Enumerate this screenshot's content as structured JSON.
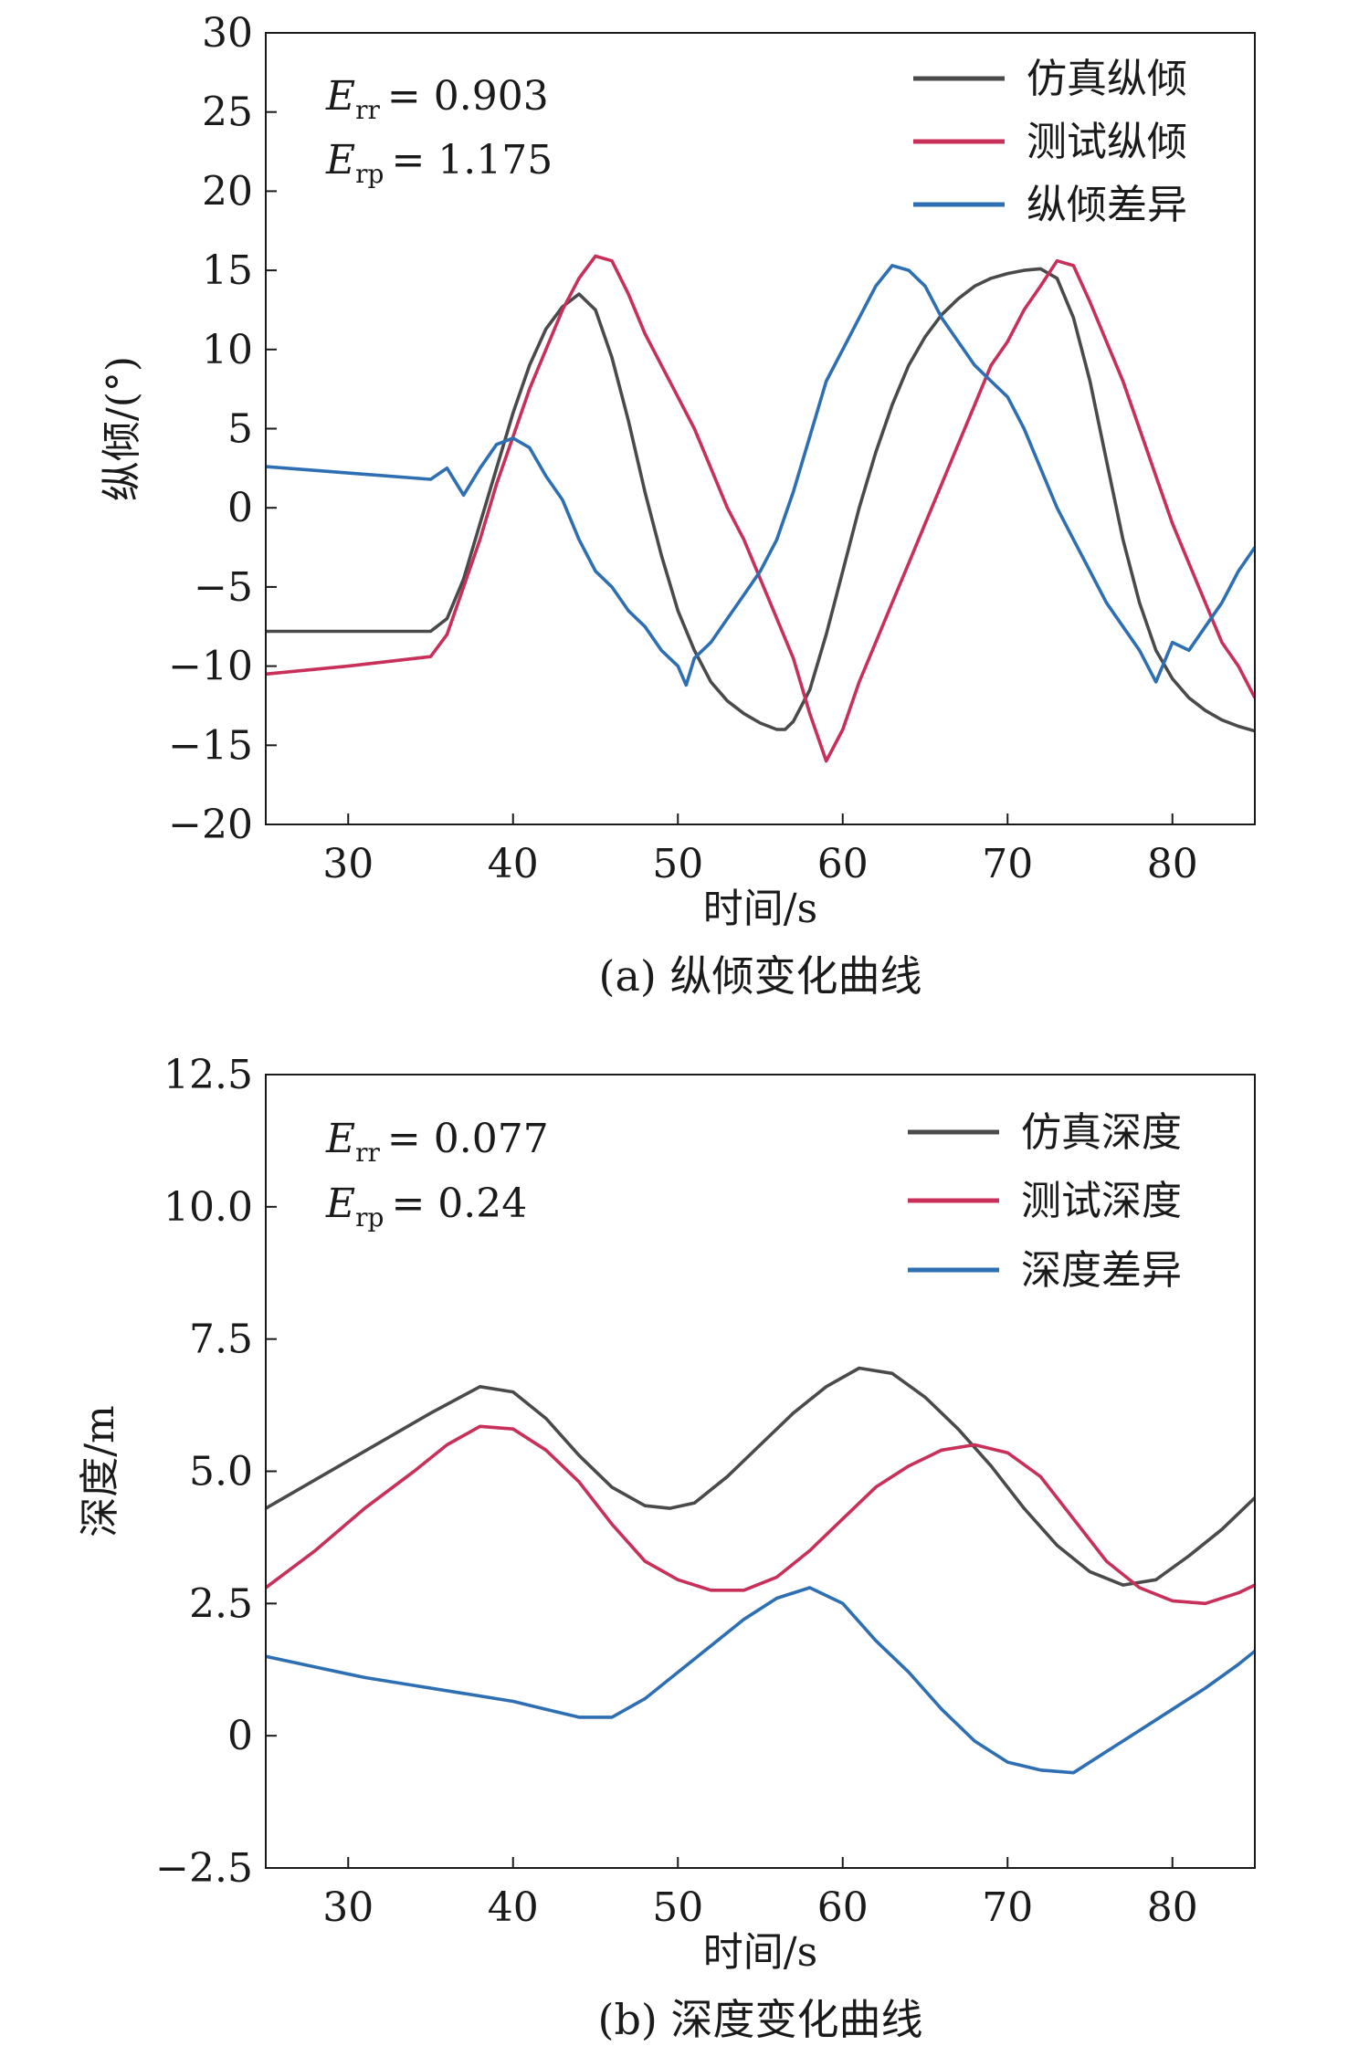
{
  "chart_data": [
    {
      "type": "line",
      "caption": "(a) 纵倾变化曲线",
      "xlabel": "时间/s",
      "ylabel": "纵倾/(°)",
      "xlim": [
        25,
        85
      ],
      "ylim": [
        -20,
        30
      ],
      "xticks": [
        30,
        40,
        50,
        60,
        70,
        80
      ],
      "yticks": [
        30,
        25,
        20,
        15,
        10,
        5,
        0,
        -5,
        -10,
        -15,
        -20
      ],
      "ytick_labels": [
        "30",
        "25",
        "20",
        "15",
        "10",
        "5",
        "0",
        "−5",
        "−10",
        "−15",
        "−20"
      ],
      "grid": false,
      "legend_position": "top-right",
      "annotations": [
        {
          "symbol": "E",
          "subscript": "rr",
          "value": "= 0.903"
        },
        {
          "symbol": "E",
          "subscript": "rp",
          "value": "= 1.175"
        }
      ],
      "series": [
        {
          "name": "仿真纵倾",
          "color": "#4a4a4a",
          "points": [
            [
              25,
              -7.8
            ],
            [
              35,
              -7.8
            ],
            [
              36,
              -7
            ],
            [
              37,
              -4.5
            ],
            [
              38,
              -1
            ],
            [
              39,
              2.5
            ],
            [
              40,
              6
            ],
            [
              41,
              9
            ],
            [
              42,
              11.3
            ],
            [
              43,
              12.7
            ],
            [
              44,
              13.5
            ],
            [
              45,
              12.5
            ],
            [
              46,
              9.5
            ],
            [
              47,
              5.5
            ],
            [
              48,
              1
            ],
            [
              49,
              -3
            ],
            [
              50,
              -6.5
            ],
            [
              51,
              -9
            ],
            [
              52,
              -11
            ],
            [
              53,
              -12.2
            ],
            [
              54,
              -13
            ],
            [
              55,
              -13.6
            ],
            [
              56,
              -14
            ],
            [
              56.5,
              -14
            ],
            [
              57,
              -13.5
            ],
            [
              58,
              -11.5
            ],
            [
              59,
              -8
            ],
            [
              60,
              -4
            ],
            [
              61,
              0
            ],
            [
              62,
              3.5
            ],
            [
              63,
              6.5
            ],
            [
              64,
              9
            ],
            [
              65,
              10.8
            ],
            [
              66,
              12.2
            ],
            [
              67,
              13.2
            ],
            [
              68,
              14
            ],
            [
              69,
              14.5
            ],
            [
              70,
              14.8
            ],
            [
              71,
              15
            ],
            [
              72,
              15.1
            ],
            [
              73,
              14.5
            ],
            [
              74,
              12
            ],
            [
              75,
              8
            ],
            [
              76,
              3
            ],
            [
              77,
              -2
            ],
            [
              78,
              -6
            ],
            [
              79,
              -9
            ],
            [
              80,
              -10.8
            ],
            [
              81,
              -12
            ],
            [
              82,
              -12.8
            ],
            [
              83,
              -13.4
            ],
            [
              84,
              -13.8
            ],
            [
              85,
              -14.1
            ]
          ]
        },
        {
          "name": "测试纵倾",
          "color": "#c8305a",
          "points": [
            [
              25,
              -10.5
            ],
            [
              30,
              -10
            ],
            [
              35,
              -9.4
            ],
            [
              36,
              -8
            ],
            [
              37,
              -5
            ],
            [
              38,
              -2
            ],
            [
              39,
              1.5
            ],
            [
              40,
              4.5
            ],
            [
              41,
              7.5
            ],
            [
              42,
              10
            ],
            [
              43,
              12.5
            ],
            [
              44,
              14.5
            ],
            [
              45,
              15.9
            ],
            [
              46,
              15.6
            ],
            [
              47,
              13.5
            ],
            [
              48,
              11
            ],
            [
              49,
              9
            ],
            [
              50,
              7
            ],
            [
              51,
              5
            ],
            [
              52,
              2.5
            ],
            [
              53,
              0
            ],
            [
              54,
              -2
            ],
            [
              55,
              -4.5
            ],
            [
              56,
              -7
            ],
            [
              57,
              -9.5
            ],
            [
              58,
              -13
            ],
            [
              59,
              -16
            ],
            [
              60,
              -14
            ],
            [
              61,
              -11
            ],
            [
              62,
              -8.5
            ],
            [
              63,
              -6
            ],
            [
              64,
              -3.5
            ],
            [
              65,
              -1
            ],
            [
              66,
              1.5
            ],
            [
              67,
              4
            ],
            [
              68,
              6.5
            ],
            [
              69,
              9
            ],
            [
              70,
              10.5
            ],
            [
              71,
              12.5
            ],
            [
              72,
              14
            ],
            [
              73,
              15.6
            ],
            [
              74,
              15.3
            ],
            [
              75,
              13
            ],
            [
              76,
              10.5
            ],
            [
              77,
              8
            ],
            [
              78,
              5
            ],
            [
              79,
              2
            ],
            [
              80,
              -1
            ],
            [
              81,
              -3.5
            ],
            [
              82,
              -6
            ],
            [
              83,
              -8.5
            ],
            [
              84,
              -10
            ],
            [
              85,
              -12
            ]
          ]
        },
        {
          "name": "纵倾差异",
          "color": "#2e6fb3",
          "points": [
            [
              25,
              2.6
            ],
            [
              30,
              2.2
            ],
            [
              35,
              1.8
            ],
            [
              36,
              2.5
            ],
            [
              37,
              0.8
            ],
            [
              38,
              2.5
            ],
            [
              39,
              4
            ],
            [
              40,
              4.4
            ],
            [
              41,
              3.8
            ],
            [
              42,
              2
            ],
            [
              43,
              0.5
            ],
            [
              44,
              -2
            ],
            [
              45,
              -4
            ],
            [
              46,
              -5
            ],
            [
              47,
              -6.5
            ],
            [
              48,
              -7.5
            ],
            [
              49,
              -9
            ],
            [
              50,
              -10
            ],
            [
              50.5,
              -11.2
            ],
            [
              51,
              -9.5
            ],
            [
              52,
              -8.5
            ],
            [
              53,
              -7
            ],
            [
              54,
              -5.5
            ],
            [
              55,
              -4
            ],
            [
              56,
              -2
            ],
            [
              57,
              1
            ],
            [
              58,
              4.5
            ],
            [
              59,
              8
            ],
            [
              60,
              10
            ],
            [
              61,
              12
            ],
            [
              62,
              14
            ],
            [
              63,
              15.3
            ],
            [
              64,
              15
            ],
            [
              65,
              14
            ],
            [
              66,
              12
            ],
            [
              67,
              10.5
            ],
            [
              68,
              9
            ],
            [
              69,
              8
            ],
            [
              70,
              7
            ],
            [
              71,
              5
            ],
            [
              72,
              2.5
            ],
            [
              73,
              0
            ],
            [
              74,
              -2
            ],
            [
              75,
              -4
            ],
            [
              76,
              -6
            ],
            [
              77,
              -7.5
            ],
            [
              78,
              -9
            ],
            [
              79,
              -11
            ],
            [
              80,
              -8.5
            ],
            [
              81,
              -9
            ],
            [
              82,
              -7.5
            ],
            [
              83,
              -6
            ],
            [
              84,
              -4
            ],
            [
              85,
              -2.5
            ]
          ]
        }
      ]
    },
    {
      "type": "line",
      "caption": "(b) 深度变化曲线",
      "xlabel": "时间/s",
      "ylabel": "深度/m",
      "xlim": [
        25,
        85
      ],
      "ylim": [
        -2.5,
        12.5
      ],
      "xticks": [
        30,
        40,
        50,
        60,
        70,
        80
      ],
      "yticks": [
        12.5,
        10,
        7.5,
        5,
        2.5,
        0,
        -2.5
      ],
      "ytick_labels": [
        "12.5",
        "10.0",
        "7.5",
        "5.0",
        "2.5",
        "0",
        "−2.5"
      ],
      "grid": false,
      "legend_position": "top-right",
      "annotations": [
        {
          "symbol": "E",
          "subscript": "rr",
          "value": "= 0.077"
        },
        {
          "symbol": "E",
          "subscript": "rp",
          "value": "= 0.24"
        }
      ],
      "series": [
        {
          "name": "仿真深度",
          "color": "#4a4a4a",
          "points": [
            [
              25,
              4.3
            ],
            [
              30,
              5.2
            ],
            [
              35,
              6.1
            ],
            [
              38,
              6.6
            ],
            [
              40,
              6.5
            ],
            [
              42,
              6
            ],
            [
              44,
              5.3
            ],
            [
              46,
              4.7
            ],
            [
              48,
              4.35
            ],
            [
              49.5,
              4.3
            ],
            [
              51,
              4.4
            ],
            [
              53,
              4.9
            ],
            [
              55,
              5.5
            ],
            [
              57,
              6.1
            ],
            [
              59,
              6.6
            ],
            [
              61,
              6.95
            ],
            [
              63,
              6.85
            ],
            [
              65,
              6.4
            ],
            [
              67,
              5.8
            ],
            [
              69,
              5.1
            ],
            [
              71,
              4.3
            ],
            [
              73,
              3.6
            ],
            [
              75,
              3.1
            ],
            [
              77,
              2.85
            ],
            [
              79,
              2.95
            ],
            [
              81,
              3.4
            ],
            [
              83,
              3.9
            ],
            [
              85,
              4.5
            ]
          ]
        },
        {
          "name": "测试深度",
          "color": "#c8305a",
          "points": [
            [
              25,
              2.8
            ],
            [
              28,
              3.5
            ],
            [
              31,
              4.3
            ],
            [
              34,
              5
            ],
            [
              36,
              5.5
            ],
            [
              38,
              5.85
            ],
            [
              40,
              5.8
            ],
            [
              42,
              5.4
            ],
            [
              44,
              4.8
            ],
            [
              46,
              4
            ],
            [
              48,
              3.3
            ],
            [
              50,
              2.95
            ],
            [
              52,
              2.75
            ],
            [
              54,
              2.75
            ],
            [
              56,
              3
            ],
            [
              58,
              3.5
            ],
            [
              60,
              4.1
            ],
            [
              62,
              4.7
            ],
            [
              64,
              5.1
            ],
            [
              66,
              5.4
            ],
            [
              68,
              5.5
            ],
            [
              70,
              5.35
            ],
            [
              72,
              4.9
            ],
            [
              74,
              4.1
            ],
            [
              76,
              3.3
            ],
            [
              78,
              2.8
            ],
            [
              80,
              2.55
            ],
            [
              82,
              2.5
            ],
            [
              84,
              2.7
            ],
            [
              85,
              2.85
            ]
          ]
        },
        {
          "name": "深度差异",
          "color": "#2e6fb3",
          "points": [
            [
              25,
              1.5
            ],
            [
              28,
              1.3
            ],
            [
              31,
              1.1
            ],
            [
              34,
              0.95
            ],
            [
              37,
              0.8
            ],
            [
              40,
              0.65
            ],
            [
              42,
              0.5
            ],
            [
              44,
              0.35
            ],
            [
              46,
              0.35
            ],
            [
              48,
              0.7
            ],
            [
              50,
              1.2
            ],
            [
              52,
              1.7
            ],
            [
              54,
              2.2
            ],
            [
              56,
              2.6
            ],
            [
              58,
              2.8
            ],
            [
              60,
              2.5
            ],
            [
              62,
              1.8
            ],
            [
              64,
              1.2
            ],
            [
              66,
              0.5
            ],
            [
              68,
              -0.1
            ],
            [
              70,
              -0.5
            ],
            [
              72,
              -0.65
            ],
            [
              74,
              -0.7
            ],
            [
              76,
              -0.3
            ],
            [
              78,
              0.1
            ],
            [
              80,
              0.5
            ],
            [
              82,
              0.9
            ],
            [
              84,
              1.35
            ],
            [
              85,
              1.6
            ]
          ]
        }
      ]
    }
  ]
}
